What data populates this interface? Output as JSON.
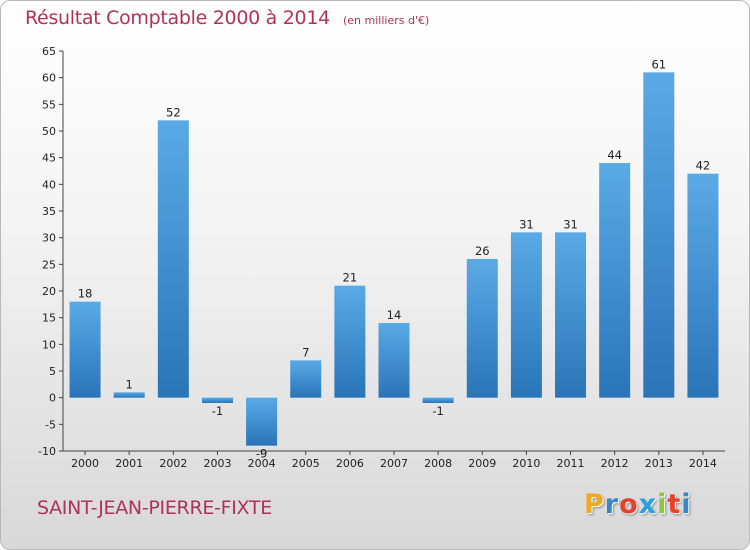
{
  "title": "Résultat Comptable 2000 à 2014",
  "subtitle": "(en milliers d'€)",
  "commune": "SAINT-JEAN-PIERRE-FIXTE",
  "brand": {
    "letters": [
      "P",
      "r",
      "o",
      "x",
      "i",
      "t",
      "i"
    ],
    "colors": [
      "#f0a81c",
      "#3a86c8",
      "#e8402a",
      "#2a9fd8",
      "#8cc63f",
      "#e8402a",
      "#3a86c8"
    ]
  },
  "chart_data": {
    "type": "bar",
    "categories": [
      "2000",
      "2001",
      "2002",
      "2003",
      "2004",
      "2005",
      "2006",
      "2007",
      "2008",
      "2009",
      "2010",
      "2011",
      "2012",
      "2013",
      "2014"
    ],
    "values": [
      18,
      1,
      52,
      -1,
      -9,
      7,
      21,
      14,
      -1,
      26,
      31,
      31,
      44,
      61,
      42
    ],
    "ylim": [
      -10,
      65
    ],
    "yticks": [
      -10,
      -5,
      0,
      5,
      10,
      15,
      20,
      25,
      30,
      35,
      40,
      45,
      50,
      55,
      60,
      65
    ],
    "grid": false,
    "bar_color": "#3d8fd6"
  }
}
